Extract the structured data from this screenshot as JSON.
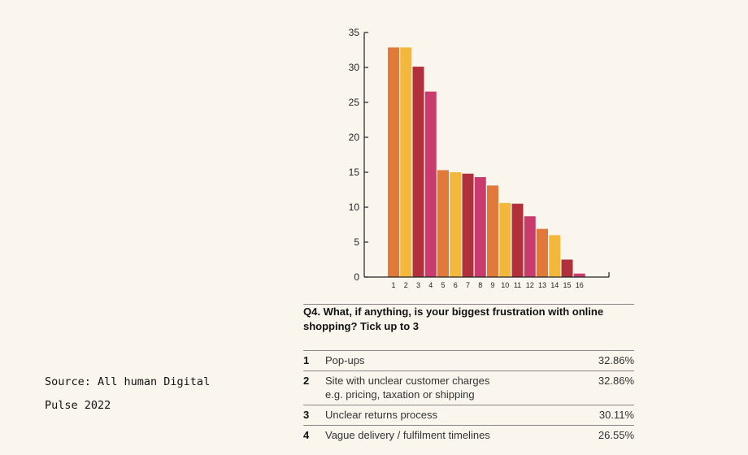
{
  "source": {
    "line1": "Source: All human Digital",
    "line2": "Pulse 2022"
  },
  "chart_data": {
    "type": "bar",
    "categories": [
      "1",
      "2",
      "3",
      "4",
      "5",
      "6",
      "7",
      "8",
      "9",
      "10",
      "11",
      "12",
      "13",
      "14",
      "15",
      "16"
    ],
    "values": [
      32.86,
      32.86,
      30.11,
      26.55,
      15.3,
      15.0,
      14.8,
      14.3,
      13.1,
      10.6,
      10.5,
      8.7,
      6.9,
      6.0,
      2.5,
      0.5
    ],
    "colors": [
      "#e07a3a",
      "#f3b73c",
      "#b0313b",
      "#c93b6c",
      "#e07a3a",
      "#f3b73c",
      "#b0313b",
      "#c93b6c",
      "#e07a3a",
      "#f3b73c",
      "#b0313b",
      "#c93b6c",
      "#e07a3a",
      "#f3b73c",
      "#b0313b",
      "#c93b6c"
    ],
    "ylim": [
      0,
      35
    ],
    "yticks": [
      0,
      5,
      10,
      15,
      20,
      25,
      30,
      35
    ],
    "title": "",
    "xlabel": "",
    "ylabel": ""
  },
  "question": "Q4. What, if anything, is your biggest frustration with online shopping? Tick up to 3",
  "table": [
    {
      "num": "1",
      "label": [
        "Pop-ups"
      ],
      "pct": "32.86%"
    },
    {
      "num": "2",
      "label": [
        "Site with unclear customer charges",
        "e.g. pricing, taxation or shipping"
      ],
      "pct": "32.86%"
    },
    {
      "num": "3",
      "label": [
        "Unclear returns process"
      ],
      "pct": "30.11%"
    },
    {
      "num": "4",
      "label": [
        "Vague delivery / fulfilment timelines"
      ],
      "pct": "26.55%"
    }
  ]
}
